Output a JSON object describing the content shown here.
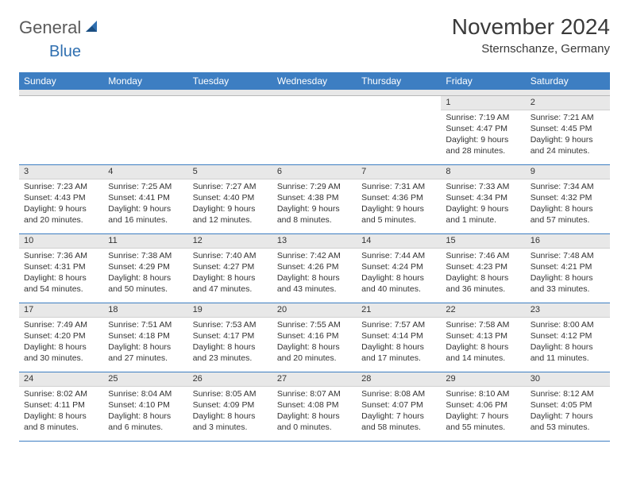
{
  "logo": {
    "part1": "General",
    "part2": "Blue"
  },
  "header": {
    "title": "November 2024",
    "location": "Sternschanze, Germany"
  },
  "colors": {
    "header_bg": "#3d7ec2",
    "header_text": "#ffffff",
    "day_bar_bg": "#e8e8e8",
    "border": "#3d7ec2",
    "logo_gray": "#5a5a5a",
    "logo_blue": "#2f6fb0"
  },
  "weekdays": [
    "Sunday",
    "Monday",
    "Tuesday",
    "Wednesday",
    "Thursday",
    "Friday",
    "Saturday"
  ],
  "month_start_weekday": 5,
  "days": [
    {
      "n": 1,
      "sunrise": "7:19 AM",
      "sunset": "4:47 PM",
      "daylight": "9 hours and 28 minutes."
    },
    {
      "n": 2,
      "sunrise": "7:21 AM",
      "sunset": "4:45 PM",
      "daylight": "9 hours and 24 minutes."
    },
    {
      "n": 3,
      "sunrise": "7:23 AM",
      "sunset": "4:43 PM",
      "daylight": "9 hours and 20 minutes."
    },
    {
      "n": 4,
      "sunrise": "7:25 AM",
      "sunset": "4:41 PM",
      "daylight": "9 hours and 16 minutes."
    },
    {
      "n": 5,
      "sunrise": "7:27 AM",
      "sunset": "4:40 PM",
      "daylight": "9 hours and 12 minutes."
    },
    {
      "n": 6,
      "sunrise": "7:29 AM",
      "sunset": "4:38 PM",
      "daylight": "9 hours and 8 minutes."
    },
    {
      "n": 7,
      "sunrise": "7:31 AM",
      "sunset": "4:36 PM",
      "daylight": "9 hours and 5 minutes."
    },
    {
      "n": 8,
      "sunrise": "7:33 AM",
      "sunset": "4:34 PM",
      "daylight": "9 hours and 1 minute."
    },
    {
      "n": 9,
      "sunrise": "7:34 AM",
      "sunset": "4:32 PM",
      "daylight": "8 hours and 57 minutes."
    },
    {
      "n": 10,
      "sunrise": "7:36 AM",
      "sunset": "4:31 PM",
      "daylight": "8 hours and 54 minutes."
    },
    {
      "n": 11,
      "sunrise": "7:38 AM",
      "sunset": "4:29 PM",
      "daylight": "8 hours and 50 minutes."
    },
    {
      "n": 12,
      "sunrise": "7:40 AM",
      "sunset": "4:27 PM",
      "daylight": "8 hours and 47 minutes."
    },
    {
      "n": 13,
      "sunrise": "7:42 AM",
      "sunset": "4:26 PM",
      "daylight": "8 hours and 43 minutes."
    },
    {
      "n": 14,
      "sunrise": "7:44 AM",
      "sunset": "4:24 PM",
      "daylight": "8 hours and 40 minutes."
    },
    {
      "n": 15,
      "sunrise": "7:46 AM",
      "sunset": "4:23 PM",
      "daylight": "8 hours and 36 minutes."
    },
    {
      "n": 16,
      "sunrise": "7:48 AM",
      "sunset": "4:21 PM",
      "daylight": "8 hours and 33 minutes."
    },
    {
      "n": 17,
      "sunrise": "7:49 AM",
      "sunset": "4:20 PM",
      "daylight": "8 hours and 30 minutes."
    },
    {
      "n": 18,
      "sunrise": "7:51 AM",
      "sunset": "4:18 PM",
      "daylight": "8 hours and 27 minutes."
    },
    {
      "n": 19,
      "sunrise": "7:53 AM",
      "sunset": "4:17 PM",
      "daylight": "8 hours and 23 minutes."
    },
    {
      "n": 20,
      "sunrise": "7:55 AM",
      "sunset": "4:16 PM",
      "daylight": "8 hours and 20 minutes."
    },
    {
      "n": 21,
      "sunrise": "7:57 AM",
      "sunset": "4:14 PM",
      "daylight": "8 hours and 17 minutes."
    },
    {
      "n": 22,
      "sunrise": "7:58 AM",
      "sunset": "4:13 PM",
      "daylight": "8 hours and 14 minutes."
    },
    {
      "n": 23,
      "sunrise": "8:00 AM",
      "sunset": "4:12 PM",
      "daylight": "8 hours and 11 minutes."
    },
    {
      "n": 24,
      "sunrise": "8:02 AM",
      "sunset": "4:11 PM",
      "daylight": "8 hours and 8 minutes."
    },
    {
      "n": 25,
      "sunrise": "8:04 AM",
      "sunset": "4:10 PM",
      "daylight": "8 hours and 6 minutes."
    },
    {
      "n": 26,
      "sunrise": "8:05 AM",
      "sunset": "4:09 PM",
      "daylight": "8 hours and 3 minutes."
    },
    {
      "n": 27,
      "sunrise": "8:07 AM",
      "sunset": "4:08 PM",
      "daylight": "8 hours and 0 minutes."
    },
    {
      "n": 28,
      "sunrise": "8:08 AM",
      "sunset": "4:07 PM",
      "daylight": "7 hours and 58 minutes."
    },
    {
      "n": 29,
      "sunrise": "8:10 AM",
      "sunset": "4:06 PM",
      "daylight": "7 hours and 55 minutes."
    },
    {
      "n": 30,
      "sunrise": "8:12 AM",
      "sunset": "4:05 PM",
      "daylight": "7 hours and 53 minutes."
    }
  ],
  "labels": {
    "sunrise": "Sunrise:",
    "sunset": "Sunset:",
    "daylight": "Daylight:"
  }
}
